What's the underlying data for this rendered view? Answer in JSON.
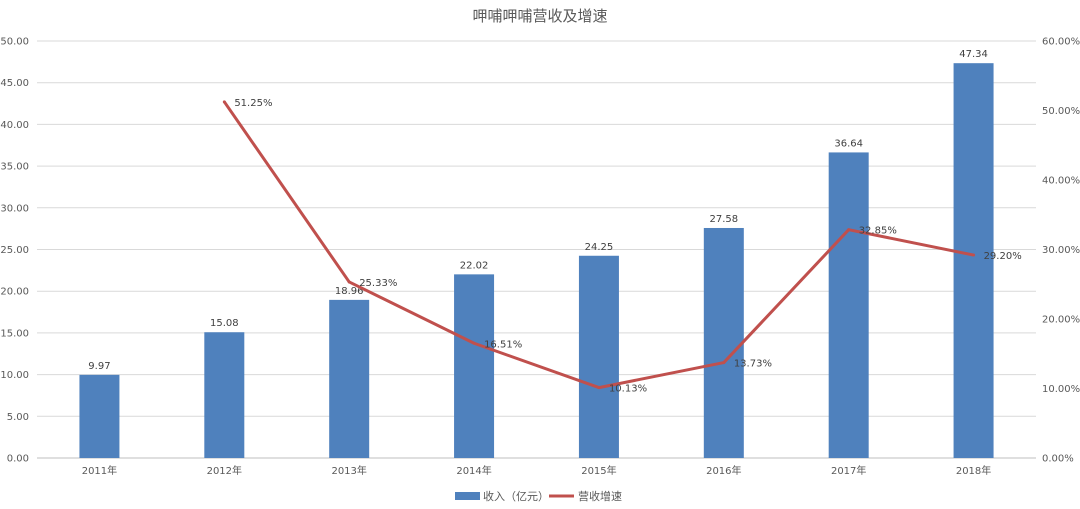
{
  "chart_data": {
    "type": "bar",
    "title": "呷哺呷哺营收及增速",
    "categories": [
      "2011年",
      "2012年",
      "2013年",
      "2014年",
      "2015年",
      "2016年",
      "2017年",
      "2018年"
    ],
    "series": [
      {
        "name": "收入（亿元）",
        "type": "bar",
        "axis": "left",
        "color": "#4f81bd",
        "values": [
          9.97,
          15.08,
          18.96,
          22.02,
          24.25,
          27.58,
          36.64,
          47.34
        ],
        "labels": [
          "9.97",
          "15.08",
          "18.96",
          "22.02",
          "24.25",
          "27.58",
          "36.64",
          "47.34"
        ]
      },
      {
        "name": "营收增速",
        "type": "line",
        "axis": "right",
        "color": "#c0504d",
        "values": [
          null,
          51.25,
          25.33,
          16.51,
          10.13,
          13.73,
          32.85,
          29.2
        ],
        "labels": [
          "",
          "51.25%",
          "25.33%",
          "16.51%",
          "10.13%",
          "13.73%",
          "32.85%",
          "29.20%"
        ]
      }
    ],
    "y_left": {
      "range": [
        0,
        50
      ],
      "ticks": [
        "0.00",
        "5.00",
        "10.00",
        "15.00",
        "20.00",
        "25.00",
        "30.00",
        "35.00",
        "40.00",
        "45.00",
        "50.00"
      ]
    },
    "y_right": {
      "range": [
        0,
        60
      ],
      "unit": "%",
      "ticks": [
        "0.00%",
        "10.00%",
        "20.00%",
        "30.00%",
        "40.00%",
        "50.00%",
        "60.00%"
      ]
    },
    "grid": true,
    "legend_position": "bottom",
    "gridline_color": "#d9d9d9"
  }
}
